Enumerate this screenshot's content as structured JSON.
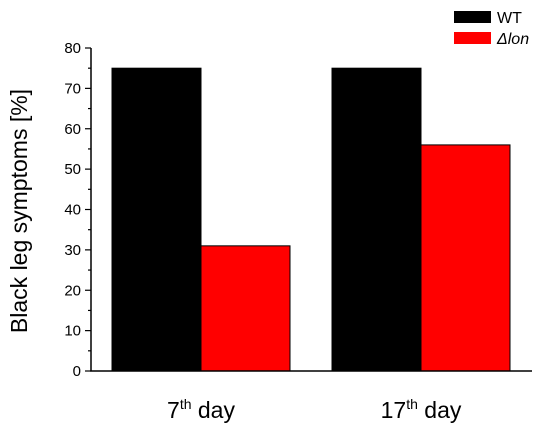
{
  "chart_data": {
    "type": "bar",
    "categories": [
      {
        "base": "7",
        "sup": "th",
        "rest": " day"
      },
      {
        "base": "17",
        "sup": "th",
        "rest": " day"
      }
    ],
    "series": [
      {
        "name": "WT",
        "color": "#000000",
        "values": [
          75,
          75
        ]
      },
      {
        "name": "Δlon",
        "color": "#ff0000",
        "values": [
          31,
          56
        ]
      }
    ],
    "ylabel": "Black leg symptoms [%]",
    "xlabel": "",
    "ylim": [
      0,
      80
    ],
    "y_ticks": [
      0,
      10,
      20,
      30,
      40,
      50,
      60,
      70,
      80
    ],
    "legend_position": "top-right",
    "grid": false
  }
}
